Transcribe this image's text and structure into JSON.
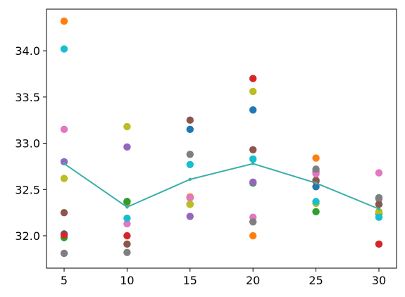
{
  "chart_data": {
    "type": "scatter",
    "title": "",
    "xlabel": "",
    "ylabel": "",
    "xlim": [
      3.6,
      31.4
    ],
    "ylim": [
      31.65,
      34.45
    ],
    "grid": false,
    "legend": "none",
    "x_ticks": [
      5,
      10,
      15,
      20,
      25,
      30
    ],
    "x_tick_labels": [
      "5",
      "10",
      "15",
      "20",
      "25",
      "30"
    ],
    "y_ticks": [
      32.0,
      32.5,
      33.0,
      33.5,
      34.0
    ],
    "y_tick_labels": [
      "32.0",
      "32.5",
      "33.0",
      "33.5",
      "34.0"
    ],
    "x": [
      5,
      10,
      15,
      20,
      25,
      30
    ],
    "series": [
      {
        "color": "#1f77b4",
        "values": [
          32.02,
          32.37,
          33.15,
          33.36,
          32.53,
          32.41
        ]
      },
      {
        "color": "#ff7f0e",
        "values": [
          34.32,
          32.36,
          32.42,
          32.0,
          32.84,
          32.24
        ]
      },
      {
        "color": "#2ca02c",
        "values": [
          31.98,
          32.37,
          32.34,
          32.57,
          32.26,
          32.24
        ]
      },
      {
        "color": "#d62728",
        "values": [
          32.01,
          32.0,
          32.41,
          33.7,
          32.59,
          31.91
        ]
      },
      {
        "color": "#9467bd",
        "values": [
          32.8,
          32.96,
          32.21,
          32.58,
          32.69,
          32.4
        ]
      },
      {
        "color": "#8c564b",
        "values": [
          32.25,
          31.91,
          33.25,
          32.93,
          32.6,
          32.34
        ]
      },
      {
        "color": "#e377c2",
        "values": [
          33.15,
          32.13,
          32.41,
          32.2,
          32.67,
          32.68
        ]
      },
      {
        "color": "#7f7f7f",
        "values": [
          31.81,
          31.82,
          32.88,
          32.15,
          32.72,
          32.41
        ]
      },
      {
        "color": "#bcbd22",
        "values": [
          32.62,
          33.18,
          32.34,
          33.56,
          32.35,
          32.26
        ]
      },
      {
        "color": "#17becf",
        "values": [
          34.02,
          32.19,
          32.77,
          32.83,
          32.37,
          32.2
        ]
      }
    ],
    "mean_line": {
      "color": "#3aafa9",
      "values": [
        32.78,
        32.31,
        32.61,
        32.78,
        32.57,
        32.29
      ]
    }
  }
}
